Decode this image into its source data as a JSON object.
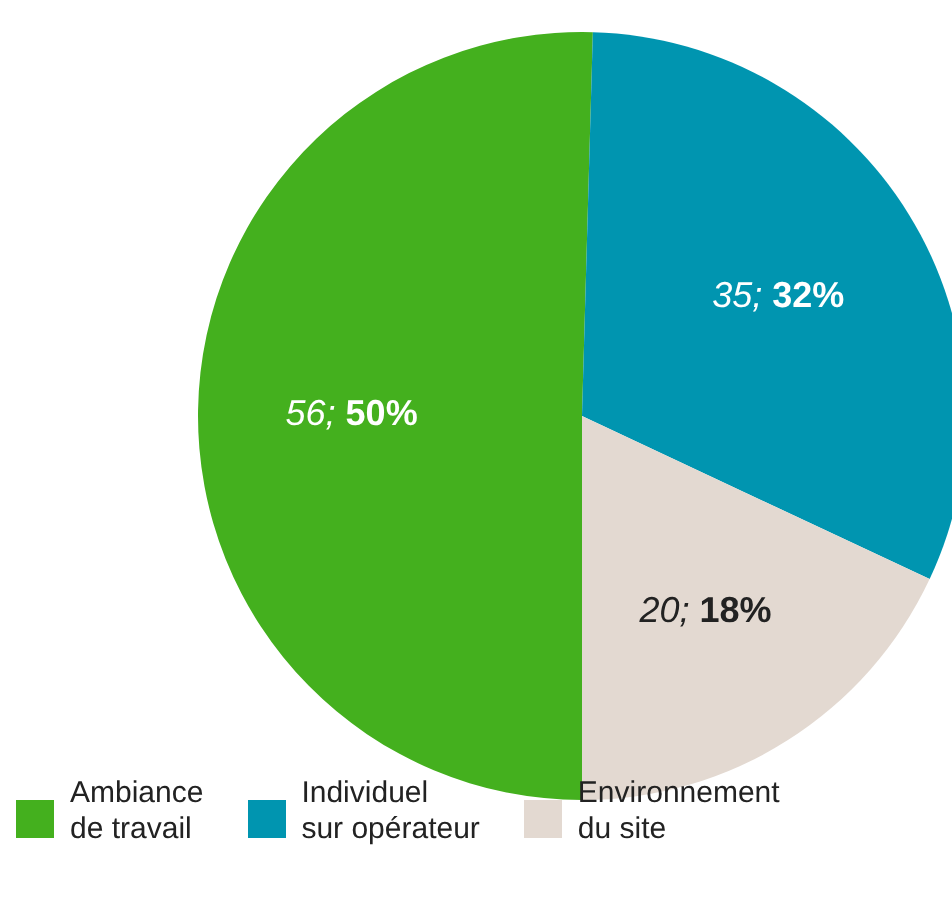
{
  "chart_data": {
    "type": "pie",
    "categories": [
      "Ambiance\nde travail",
      "Individuel\nsur opérateur",
      "Environnement\ndu site"
    ],
    "values": [
      56,
      35,
      20
    ],
    "colors": [
      "#44b01e",
      "#0095b0",
      "#e3d9d1"
    ],
    "value_labels": [
      "56; 50%",
      "35; 32%",
      "20; 18%"
    ],
    "legend": "bottom"
  }
}
